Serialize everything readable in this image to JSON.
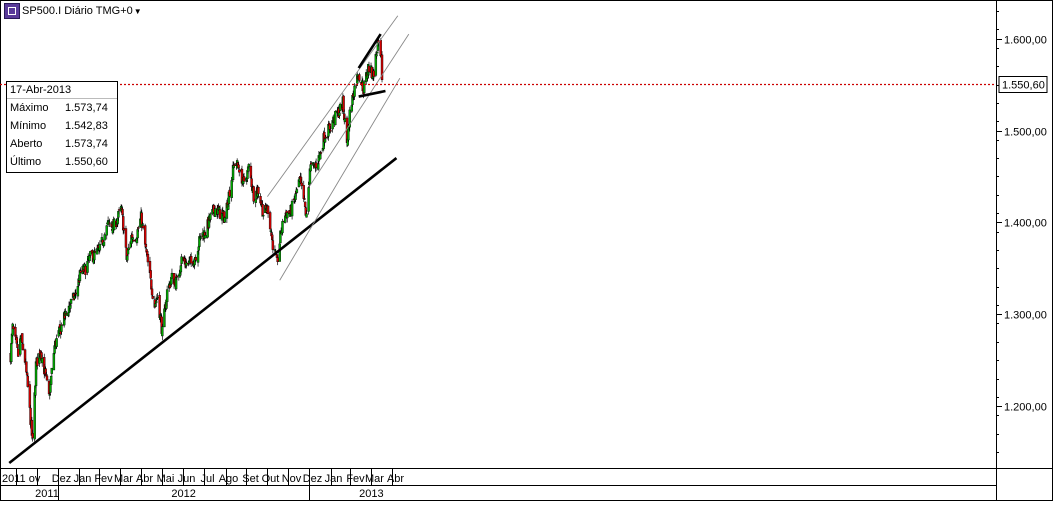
{
  "header": {
    "instrument_label": "SP500.I Diário TMG+0",
    "logo_icon": "cfd-icon",
    "caret_icon": "dropdown-caret-icon"
  },
  "info_box": {
    "date": "17-Abr-2013",
    "rows": [
      {
        "label": "Máximo",
        "value": "1.573,74"
      },
      {
        "label": "Mínimo",
        "value": "1.542,83"
      },
      {
        "label": "Aberto",
        "value": "1.573,74"
      },
      {
        "label": "Último",
        "value": "1.550,60"
      }
    ]
  },
  "colors": {
    "up": "#00aa00",
    "down": "#d40000",
    "last_price_line": "#cc0000",
    "trendline": "#000000",
    "channel": "#888888"
  },
  "chart_data": {
    "type": "candlestick",
    "title": "",
    "xlabel": "",
    "ylabel": "",
    "ylim": [
      1137,
      1685
    ],
    "y_ticks": [
      {
        "value": 1200,
        "label": "1.200,00"
      },
      {
        "value": 1300,
        "label": "1.300,00"
      },
      {
        "value": 1400,
        "label": "1.400,00"
      },
      {
        "value": 1500,
        "label": "1.500,00"
      },
      {
        "value": 1600,
        "label": "1.600,00"
      }
    ],
    "last_price": {
      "value": 1550.6,
      "label": "1.550,60"
    },
    "x_month_labels": [
      "Nov",
      "Dez",
      "Jan",
      "Fev",
      "Mar",
      "Abr",
      "Mai",
      "Jun",
      "Jul",
      "Ago",
      "Set",
      "Out",
      "Nov",
      "Dez",
      "Jan",
      "Fev",
      "Mar",
      "Abr"
    ],
    "x_first_label_fragment": "2011 ov",
    "x_years": [
      {
        "label": "2011"
      },
      {
        "label": "2012"
      },
      {
        "label": "2013"
      }
    ],
    "series": [
      {
        "sampling": "approximate daily closes, Oct 2011 – Apr 2013",
        "close_path": [
          [
            "2011-10-24",
            1255
          ],
          [
            "2011-10-27",
            1285
          ],
          [
            "2011-11-04",
            1255
          ],
          [
            "2011-11-08",
            1275
          ],
          [
            "2011-11-14",
            1250
          ],
          [
            "2011-11-18",
            1220
          ],
          [
            "2011-11-25",
            1160
          ],
          [
            "2011-11-30",
            1245
          ],
          [
            "2011-12-07",
            1260
          ],
          [
            "2011-12-12",
            1240
          ],
          [
            "2011-12-19",
            1210
          ],
          [
            "2011-12-27",
            1265
          ],
          [
            "2012-01-03",
            1280
          ],
          [
            "2012-01-10",
            1295
          ],
          [
            "2012-01-18",
            1310
          ],
          [
            "2012-01-26",
            1320
          ],
          [
            "2012-02-03",
            1345
          ],
          [
            "2012-02-10",
            1350
          ],
          [
            "2012-02-17",
            1362
          ],
          [
            "2012-02-24",
            1365
          ],
          [
            "2012-03-02",
            1370
          ],
          [
            "2012-03-08",
            1385
          ],
          [
            "2012-03-15",
            1400
          ],
          [
            "2012-03-22",
            1395
          ],
          [
            "2012-03-28",
            1405
          ],
          [
            "2012-04-02",
            1415
          ],
          [
            "2012-04-05",
            1398
          ],
          [
            "2012-04-10",
            1360
          ],
          [
            "2012-04-17",
            1385
          ],
          [
            "2012-04-24",
            1385
          ],
          [
            "2012-05-01",
            1405
          ],
          [
            "2012-05-07",
            1375
          ],
          [
            "2012-05-14",
            1340
          ],
          [
            "2012-05-21",
            1310
          ],
          [
            "2012-05-25",
            1320
          ],
          [
            "2012-06-01",
            1280
          ],
          [
            "2012-06-08",
            1325
          ],
          [
            "2012-06-15",
            1340
          ],
          [
            "2012-06-22",
            1335
          ],
          [
            "2012-06-29",
            1360
          ],
          [
            "2012-07-06",
            1355
          ],
          [
            "2012-07-13",
            1355
          ],
          [
            "2012-07-20",
            1365
          ],
          [
            "2012-07-27",
            1385
          ],
          [
            "2012-08-03",
            1390
          ],
          [
            "2012-08-10",
            1405
          ],
          [
            "2012-08-17",
            1415
          ],
          [
            "2012-08-24",
            1410
          ],
          [
            "2012-08-31",
            1405
          ],
          [
            "2012-09-07",
            1435
          ],
          [
            "2012-09-14",
            1465
          ],
          [
            "2012-09-21",
            1460
          ],
          [
            "2012-09-28",
            1440
          ],
          [
            "2012-10-05",
            1460
          ],
          [
            "2012-10-12",
            1430
          ],
          [
            "2012-10-19",
            1435
          ],
          [
            "2012-10-26",
            1410
          ],
          [
            "2012-11-02",
            1415
          ],
          [
            "2012-11-08",
            1380
          ],
          [
            "2012-11-15",
            1355
          ],
          [
            "2012-11-21",
            1390
          ],
          [
            "2012-11-28",
            1410
          ],
          [
            "2012-12-04",
            1410
          ],
          [
            "2012-12-11",
            1425
          ],
          [
            "2012-12-18",
            1445
          ],
          [
            "2012-12-24",
            1425
          ],
          [
            "2012-12-28",
            1405
          ],
          [
            "2013-01-02",
            1460
          ],
          [
            "2013-01-09",
            1460
          ],
          [
            "2013-01-16",
            1472
          ],
          [
            "2013-01-23",
            1494
          ],
          [
            "2013-01-30",
            1502
          ],
          [
            "2013-02-06",
            1512
          ],
          [
            "2013-02-13",
            1520
          ],
          [
            "2013-02-19",
            1530
          ],
          [
            "2013-02-25",
            1487
          ],
          [
            "2013-03-01",
            1518
          ],
          [
            "2013-03-07",
            1544
          ],
          [
            "2013-03-14",
            1563
          ],
          [
            "2013-03-21",
            1545
          ],
          [
            "2013-03-28",
            1569
          ],
          [
            "2013-04-04",
            1560
          ],
          [
            "2013-04-11",
            1593
          ],
          [
            "2013-04-16",
            1575
          ],
          [
            "2013-04-17",
            1550.6
          ]
        ]
      }
    ],
    "annotations": [
      {
        "type": "trendline",
        "from": [
          "2011-10-22",
          1138
        ],
        "to": [
          "2013-05-08",
          1470
        ]
      },
      {
        "type": "channel-line",
        "from": [
          "2012-11-01",
          1428
        ],
        "to": [
          "2013-05-10",
          1625
        ]
      },
      {
        "type": "channel-line",
        "from": [
          "2012-11-19",
          1337
        ],
        "to": [
          "2013-05-13",
          1557
        ]
      },
      {
        "type": "channel-line",
        "from": [
          "2013-01-02",
          1440
        ],
        "to": [
          "2013-05-26",
          1605
        ]
      },
      {
        "type": "wedge-upper",
        "from": [
          "2013-03-14",
          1568
        ],
        "to": [
          "2013-04-15",
          1605
        ]
      },
      {
        "type": "wedge-lower",
        "from": [
          "2013-03-14",
          1537
        ],
        "to": [
          "2013-04-22",
          1543
        ]
      }
    ]
  }
}
